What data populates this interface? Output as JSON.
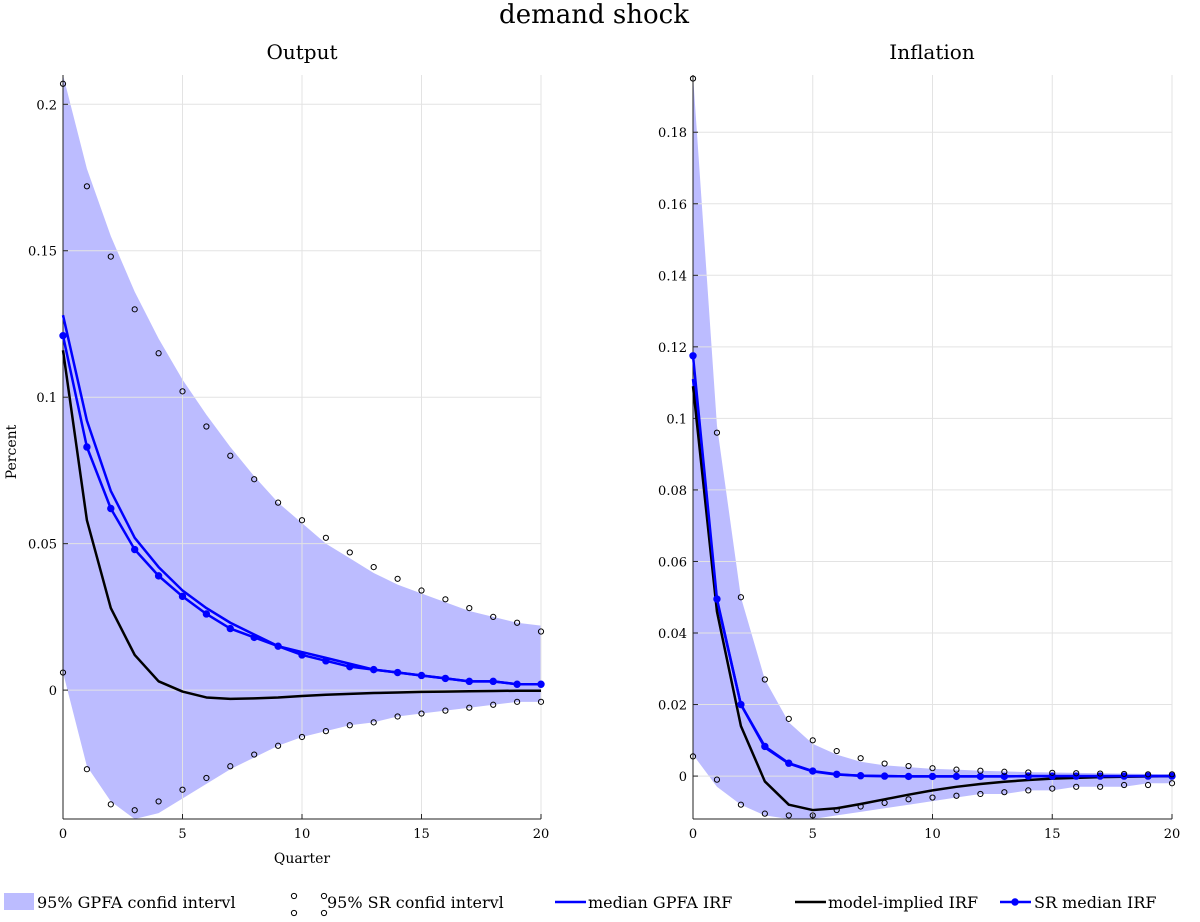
{
  "figure_title": "demand shock",
  "colors": {
    "band": "#bcbcff",
    "gpfa_median": "#0000ff",
    "model_implied": "#000000",
    "sr_median": "#0000ff",
    "sr_band_markers": "#000000",
    "grid": "#e3e3e3"
  },
  "legend": {
    "gpfa_band": "95% GPFA confid intervl",
    "sr_band": "95% SR confid intervl",
    "gpfa_median": "median GPFA IRF",
    "model_implied": "model-implied IRF",
    "sr_median": "SR median IRF"
  },
  "chart_data": [
    {
      "type": "line",
      "title": "Output",
      "xlabel": "Quarter",
      "ylabel": "Percent",
      "xlim": [
        0,
        20
      ],
      "ylim": [
        -0.044,
        0.21
      ],
      "xticks": [
        0,
        5,
        10,
        15,
        20
      ],
      "yticks": [
        0,
        0.05,
        0.1,
        0.15,
        0.2
      ],
      "ytick_labels": [
        "0",
        "0.05",
        "0.1",
        "0.15",
        "0.2"
      ],
      "grid": true,
      "x": [
        0,
        1,
        2,
        3,
        4,
        5,
        6,
        7,
        8,
        9,
        10,
        11,
        12,
        13,
        14,
        15,
        16,
        17,
        18,
        19,
        20
      ],
      "gpfa_band_upper": [
        0.21,
        0.178,
        0.155,
        0.136,
        0.12,
        0.106,
        0.094,
        0.083,
        0.073,
        0.064,
        0.057,
        0.05,
        0.045,
        0.04,
        0.036,
        0.033,
        0.03,
        0.027,
        0.025,
        0.023,
        0.022
      ],
      "gpfa_band_lower": [
        0.006,
        -0.026,
        -0.038,
        -0.044,
        -0.042,
        -0.037,
        -0.032,
        -0.027,
        -0.023,
        -0.019,
        -0.016,
        -0.014,
        -0.012,
        -0.011,
        -0.009,
        -0.008,
        -0.007,
        -0.006,
        -0.005,
        -0.004,
        -0.004
      ],
      "sr_band_upper": [
        0.207,
        0.172,
        0.148,
        0.13,
        0.115,
        0.102,
        0.09,
        0.08,
        0.072,
        0.064,
        0.058,
        0.052,
        0.047,
        0.042,
        0.038,
        0.034,
        0.031,
        0.028,
        0.025,
        0.023,
        0.02
      ],
      "sr_band_lower": [
        0.006,
        -0.027,
        -0.039,
        -0.041,
        -0.038,
        -0.034,
        -0.03,
        -0.026,
        -0.022,
        -0.019,
        -0.016,
        -0.014,
        -0.012,
        -0.011,
        -0.009,
        -0.008,
        -0.007,
        -0.006,
        -0.005,
        -0.004,
        -0.004
      ],
      "gpfa_median": [
        0.128,
        0.092,
        0.068,
        0.052,
        0.042,
        0.034,
        0.028,
        0.023,
        0.019,
        0.015,
        0.013,
        0.011,
        0.009,
        0.007,
        0.006,
        0.005,
        0.004,
        0.003,
        0.003,
        0.002,
        0.002
      ],
      "model_implied": [
        0.116,
        0.058,
        0.028,
        0.012,
        0.003,
        -0.0005,
        -0.0025,
        -0.003,
        -0.0028,
        -0.0025,
        -0.002,
        -0.0016,
        -0.0013,
        -0.001,
        -0.0008,
        -0.0006,
        -0.0005,
        -0.0004,
        -0.0003,
        -0.0002,
        -0.0002
      ],
      "sr_median": [
        0.121,
        0.083,
        0.062,
        0.048,
        0.039,
        0.032,
        0.026,
        0.021,
        0.018,
        0.015,
        0.012,
        0.01,
        0.008,
        0.007,
        0.006,
        0.005,
        0.004,
        0.003,
        0.003,
        0.002,
        0.002
      ]
    },
    {
      "type": "line",
      "title": "Inflation",
      "xlabel": "",
      "ylabel": "",
      "xlim": [
        0,
        20
      ],
      "ylim": [
        -0.012,
        0.196
      ],
      "xticks": [
        0,
        5,
        10,
        15,
        20
      ],
      "yticks": [
        0,
        0.02,
        0.04,
        0.06,
        0.08,
        0.1,
        0.12,
        0.14,
        0.16,
        0.18
      ],
      "ytick_labels": [
        "0",
        "0.02",
        "0.04",
        "0.06",
        "0.08",
        "0.1",
        "0.12",
        "0.14",
        "0.16",
        "0.18"
      ],
      "grid": true,
      "x": [
        0,
        1,
        2,
        3,
        4,
        5,
        6,
        7,
        8,
        9,
        10,
        11,
        12,
        13,
        14,
        15,
        16,
        17,
        18,
        19,
        20
      ],
      "gpfa_band_upper": [
        0.196,
        0.098,
        0.05,
        0.027,
        0.015,
        0.009,
        0.006,
        0.004,
        0.003,
        0.0025,
        0.002,
        0.0018,
        0.0015,
        0.0013,
        0.0011,
        0.001,
        0.0009,
        0.0008,
        0.0007,
        0.0006,
        0.0005
      ],
      "gpfa_band_lower": [
        0.006,
        -0.003,
        -0.008,
        -0.011,
        -0.012,
        -0.012,
        -0.011,
        -0.01,
        -0.009,
        -0.008,
        -0.007,
        -0.006,
        -0.005,
        -0.005,
        -0.004,
        -0.004,
        -0.003,
        -0.003,
        -0.003,
        -0.002,
        -0.002
      ],
      "sr_band_upper": [
        0.195,
        0.096,
        0.05,
        0.027,
        0.016,
        0.01,
        0.007,
        0.005,
        0.0035,
        0.0028,
        0.0022,
        0.0018,
        0.0015,
        0.0012,
        0.001,
        0.0009,
        0.0008,
        0.0007,
        0.0006,
        0.0005,
        0.0005
      ],
      "sr_band_lower": [
        0.0055,
        -0.001,
        -0.008,
        -0.0105,
        -0.011,
        -0.011,
        -0.0095,
        -0.0085,
        -0.0075,
        -0.0065,
        -0.006,
        -0.0055,
        -0.005,
        -0.0045,
        -0.004,
        -0.0035,
        -0.003,
        -0.003,
        -0.0025,
        -0.0025,
        -0.002
      ],
      "gpfa_median": [
        0.111,
        0.049,
        0.02,
        0.008,
        0.0035,
        0.0013,
        0.0004,
        0.0001,
        0,
        -0.0001,
        -0.0001,
        -0.0001,
        -0.0001,
        -0.0001,
        0,
        0,
        0,
        0,
        0,
        0,
        0
      ],
      "model_implied": [
        0.109,
        0.046,
        0.014,
        -0.0015,
        -0.008,
        -0.0095,
        -0.009,
        -0.0078,
        -0.0065,
        -0.0052,
        -0.004,
        -0.003,
        -0.0022,
        -0.0016,
        -0.0011,
        -0.0007,
        -0.0005,
        -0.0003,
        -0.0002,
        -0.0001,
        0
      ],
      "sr_median": [
        0.1175,
        0.0495,
        0.02,
        0.0083,
        0.0036,
        0.0014,
        0.0005,
        0.0001,
        0,
        -0.0001,
        -0.0001,
        -0.0001,
        -0.0001,
        -0.0001,
        0,
        0,
        0,
        0,
        0,
        0,
        0
      ]
    }
  ]
}
